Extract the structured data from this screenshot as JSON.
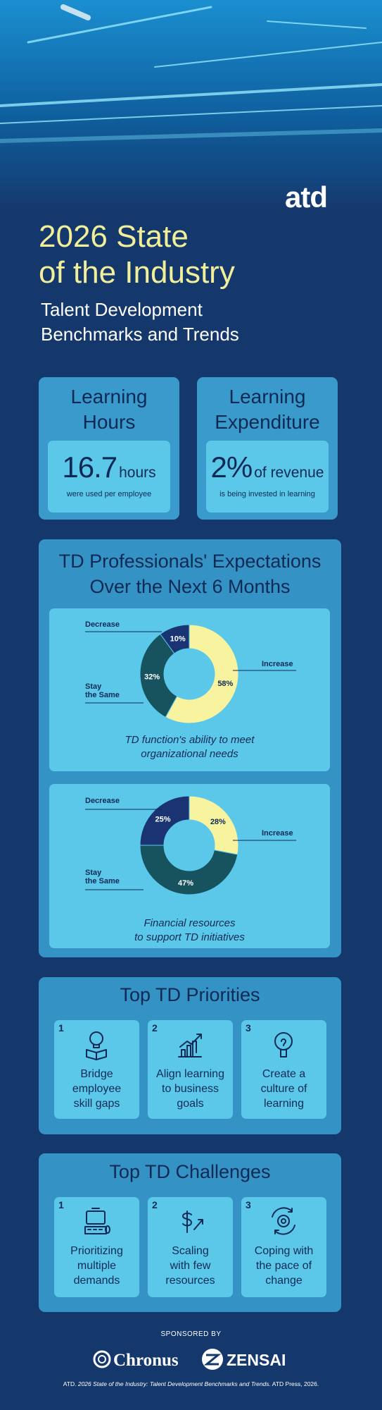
{
  "header": {
    "logo": "atd",
    "title": [
      "2026 State",
      "of the Industry"
    ],
    "subtitle": [
      "Talent Development",
      "Benchmarks and Trends"
    ]
  },
  "stats": [
    {
      "title": [
        "Learning",
        "Hours"
      ],
      "value": "16.7",
      "unit": "hours",
      "caption": "were used per employee"
    },
    {
      "title": [
        "Learning",
        "Expenditure"
      ],
      "value": "2%",
      "unit": "of revenue",
      "caption": "is being invested in learning"
    }
  ],
  "expectations": {
    "title": [
      "TD Professionals' Expectations",
      "Over the Next 6 Months"
    ],
    "charts": [
      {
        "type": "donut",
        "categories": [
          [
            "Increase"
          ],
          [
            "Stay",
            "the Same"
          ],
          [
            "Decrease"
          ]
        ],
        "values": [
          58,
          32,
          10
        ],
        "value_labels": [
          "58%",
          "32%",
          "10%"
        ],
        "colors": [
          "#f7f39f",
          "#17535f",
          "#1a3473"
        ],
        "caption": [
          "TD function's ability to meet",
          "organizational needs"
        ]
      },
      {
        "type": "donut",
        "categories": [
          [
            "Increase"
          ],
          [
            "Stay",
            "the Same"
          ],
          [
            "Decrease"
          ]
        ],
        "values": [
          28,
          47,
          25
        ],
        "value_labels": [
          "28%",
          "47%",
          "25%"
        ],
        "colors": [
          "#f7f39f",
          "#17535f",
          "#1a3473"
        ],
        "caption": [
          "Financial resources",
          "to support TD initiatives"
        ]
      }
    ]
  },
  "priorities": {
    "title": "Top TD Priorities",
    "items": [
      {
        "number": "1",
        "label": [
          "Bridge",
          "employee",
          "skill gaps"
        ]
      },
      {
        "number": "2",
        "label": [
          "Align learning",
          "to business",
          "goals"
        ]
      },
      {
        "number": "3",
        "label": [
          "Create a",
          "culture of",
          "learning"
        ]
      }
    ]
  },
  "challenges": {
    "title": "Top TD Challenges",
    "items": [
      {
        "number": "1",
        "label": [
          "Prioritizing",
          "multiple",
          "demands"
        ]
      },
      {
        "number": "2",
        "label": [
          "Scaling",
          "with few",
          "resources"
        ]
      },
      {
        "number": "3",
        "label": [
          "Coping with",
          "the pace of",
          "change"
        ]
      }
    ]
  },
  "sponsors": {
    "heading": "SPONSORED BY",
    "names": [
      "Chronus",
      "ZENSAI"
    ]
  },
  "citation": [
    "ATD.",
    "2026 State of the Industry: Talent Development Benchmarks and Trends.",
    "ATD Press, 2026."
  ]
}
